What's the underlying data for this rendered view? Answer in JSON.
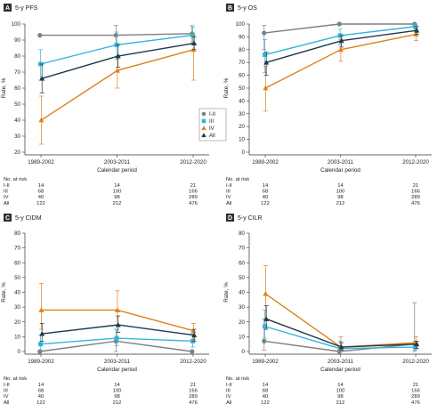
{
  "chart_data": [
    {
      "type": "line",
      "panel_letter": "A",
      "title": "5-y PFS",
      "xlabel": "Calendar period",
      "ylabel": "Rate, %",
      "categories": [
        "1989-2002",
        "2003-2011",
        "2012-2020"
      ],
      "ylim": [
        20,
        100
      ],
      "yticks": [
        20,
        30,
        40,
        50,
        60,
        70,
        80,
        90,
        100
      ],
      "legend_position": "right-middle",
      "series": [
        {
          "name": "I-II",
          "color": "#7f7f7f",
          "marker": "circle",
          "values": [
            93,
            93,
            94
          ],
          "err_low": [
            null,
            87,
            88
          ],
          "err_high": [
            null,
            99,
            99
          ]
        },
        {
          "name": "III",
          "color": "#34b3dd",
          "marker": "square",
          "values": [
            75,
            87,
            93
          ],
          "err_low": [
            65,
            78,
            87
          ],
          "err_high": [
            84,
            95,
            98
          ]
        },
        {
          "name": "IV",
          "color": "#e0811b",
          "marker": "triangle",
          "values": [
            40,
            71,
            84
          ],
          "err_low": [
            25,
            60,
            65
          ],
          "err_high": [
            55,
            80,
            93
          ]
        },
        {
          "name": "All",
          "color": "#1e3a4e",
          "marker": "triangle",
          "values": [
            66,
            80,
            88
          ],
          "err_low": [
            57,
            73,
            84
          ],
          "err_high": [
            75,
            87,
            92
          ]
        }
      ]
    },
    {
      "type": "line",
      "panel_letter": "B",
      "title": "5-y OS",
      "xlabel": "Calendar period",
      "ylabel": "Rate, %",
      "categories": [
        "1989-2002",
        "2003-2011",
        "2012-2020"
      ],
      "ylim": [
        0,
        100
      ],
      "yticks": [
        0,
        10,
        20,
        30,
        40,
        50,
        60,
        70,
        80,
        90,
        100
      ],
      "series": [
        {
          "name": "I-II",
          "color": "#7f7f7f",
          "marker": "circle",
          "values": [
            93,
            100,
            100
          ],
          "err_low": [
            80,
            null,
            null
          ],
          "err_high": [
            99,
            null,
            null
          ]
        },
        {
          "name": "III",
          "color": "#34b3dd",
          "marker": "square",
          "values": [
            76,
            91,
            98
          ],
          "err_low": [
            62,
            84,
            95
          ],
          "err_high": [
            88,
            96,
            100
          ]
        },
        {
          "name": "IV",
          "color": "#e0811b",
          "marker": "triangle",
          "values": [
            50,
            80,
            92
          ],
          "err_low": [
            32,
            71,
            87
          ],
          "err_high": [
            67,
            88,
            96
          ]
        },
        {
          "name": "All",
          "color": "#1e3a4e",
          "marker": "triangle",
          "values": [
            70,
            87,
            95
          ],
          "err_low": [
            60,
            82,
            92
          ],
          "err_high": [
            78,
            91,
            98
          ]
        }
      ]
    },
    {
      "type": "line",
      "panel_letter": "C",
      "title": "5-y CIDM",
      "xlabel": "Calendar period",
      "ylabel": "Rate, %",
      "categories": [
        "1989-2002",
        "2003-2011",
        "2012-2020"
      ],
      "ylim": [
        0,
        80
      ],
      "yticks": [
        0,
        10,
        20,
        30,
        40,
        50,
        60,
        70,
        80
      ],
      "series": [
        {
          "name": "I-II",
          "color": "#7f7f7f",
          "marker": "circle",
          "values": [
            0,
            7,
            0
          ],
          "err_low": [
            null,
            0,
            null
          ],
          "err_high": [
            null,
            15,
            null
          ]
        },
        {
          "name": "III",
          "color": "#34b3dd",
          "marker": "square",
          "values": [
            5,
            9,
            7
          ],
          "err_low": [
            1,
            4,
            3
          ],
          "err_high": [
            11,
            15,
            12
          ]
        },
        {
          "name": "IV",
          "color": "#e0811b",
          "marker": "triangle",
          "values": [
            28,
            28,
            14
          ],
          "err_low": [
            15,
            18,
            8
          ],
          "err_high": [
            46,
            41,
            19
          ]
        },
        {
          "name": "All",
          "color": "#1e3a4e",
          "marker": "triangle",
          "values": [
            12,
            18,
            11
          ],
          "err_low": [
            7,
            13,
            7
          ],
          "err_high": [
            19,
            24,
            15
          ]
        }
      ]
    },
    {
      "type": "line",
      "panel_letter": "D",
      "title": "5-y CILR",
      "xlabel": "Calendar period",
      "ylabel": "Rate, %",
      "categories": [
        "1989-2002",
        "2003-2011",
        "2012-2020"
      ],
      "ylim": [
        0,
        80
      ],
      "yticks": [
        0,
        10,
        20,
        30,
        40,
        50,
        60,
        70,
        80
      ],
      "series": [
        {
          "name": "I-II",
          "color": "#7f7f7f",
          "marker": "circle",
          "values": [
            7,
            0,
            5
          ],
          "err_low": [
            1,
            null,
            0
          ],
          "err_high": [
            22,
            null,
            33
          ]
        },
        {
          "name": "III",
          "color": "#34b3dd",
          "marker": "square",
          "values": [
            17,
            2,
            3
          ],
          "err_low": [
            9,
            0,
            1
          ],
          "err_high": [
            28,
            7,
            7
          ]
        },
        {
          "name": "IV",
          "color": "#e0811b",
          "marker": "triangle",
          "values": [
            39,
            3,
            6
          ],
          "err_low": [
            22,
            0,
            2
          ],
          "err_high": [
            58,
            10,
            10
          ]
        },
        {
          "name": "All",
          "color": "#1e3a4e",
          "marker": "triangle",
          "values": [
            22,
            3,
            5
          ],
          "err_low": [
            15,
            1,
            2
          ],
          "err_high": [
            31,
            6,
            7
          ]
        }
      ]
    }
  ],
  "risk_table": {
    "header": "No. at risk",
    "rows": [
      {
        "label": "I-II",
        "values": [
          "14",
          "14",
          "21"
        ]
      },
      {
        "label": "III",
        "values": [
          "68",
          "100",
          "166"
        ]
      },
      {
        "label": "IV",
        "values": [
          "40",
          "98",
          "289"
        ]
      },
      {
        "label": "All",
        "values": [
          "122",
          "212",
          "476"
        ]
      }
    ]
  }
}
